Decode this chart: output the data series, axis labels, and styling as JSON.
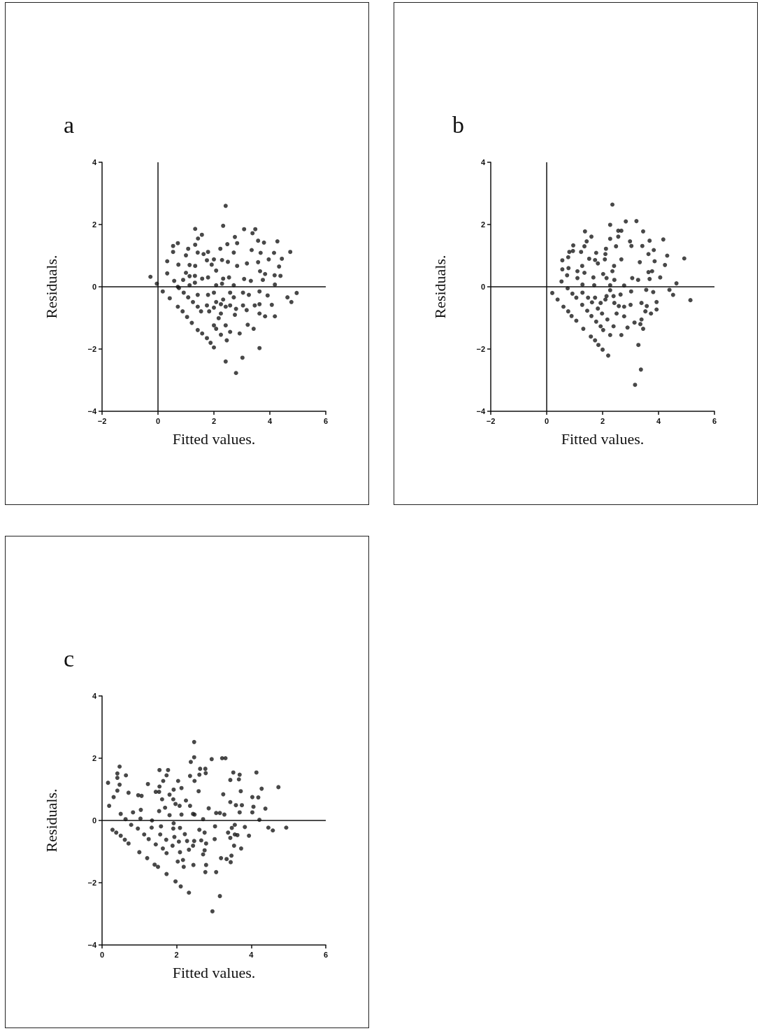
{
  "chart_data": [
    {
      "type": "scatter",
      "title": "a",
      "xlabel": "Fitted values.",
      "ylabel": "Residuals.",
      "xlim": [
        -2,
        6
      ],
      "ylim": [
        -4,
        4
      ],
      "xticks": [
        -2,
        0,
        2,
        4,
        6
      ],
      "yticks": [
        -4,
        -2,
        0,
        2,
        4
      ],
      "grid": false,
      "marker": "circle",
      "ref_lines": [
        {
          "axis": "x",
          "value": 0
        },
        {
          "axis": "y",
          "value": 0
        }
      ],
      "series": [
        {
          "color": "#1a1a1a",
          "x": [
            2.42,
            2.33,
            1.33,
            3.08,
            3.48,
            3.38,
            1.57,
            1.43,
            2.75,
            2.83,
            2.48,
            3.58,
            3.79,
            4.27,
            0.71,
            0.54,
            0.54,
            1.08,
            1.33,
            1.42,
            1.63,
            1.79,
            2.23,
            2.71,
            3.35,
            3.67,
            4.15,
            4.73,
            1.0,
            0.33,
            0.73,
            1.13,
            1.33,
            1.75,
            2.0,
            2.29,
            2.5,
            1.92,
            2.08,
            2.83,
            3.18,
            3.58,
            3.96,
            4.43,
            4.33,
            0.33,
            1.0,
            1.13,
            1.32,
            1.58,
            1.79,
            0.9,
            3.65,
            3.83,
            4.17,
            4.38,
            2.33,
            2.54,
            3.08,
            3.32,
            3.75,
            -0.27,
            -0.04,
            0.58,
            1.13,
            1.32,
            2.08,
            2.29,
            2.71,
            4.18,
            0.17,
            0.42,
            0.71,
            0.75,
            0.92,
            1.08,
            1.25,
            1.42,
            1.54,
            0.71,
            0.88,
            1.04,
            1.21,
            1.42,
            1.58,
            1.75,
            1.88,
            2.0,
            1.42,
            1.79,
            2.0,
            2.08,
            2.0,
            2.25,
            2.17,
            2.33,
            2.25,
            2.42,
            2.58,
            2.79,
            2.75,
            2.58,
            2.71,
            3.04,
            3.25,
            3.04,
            3.17,
            3.46,
            3.63,
            3.63,
            3.83,
            3.92,
            4.07,
            4.18,
            3.63,
            4.63,
            4.77,
            4.96,
            2.0,
            2.08,
            2.25,
            2.42,
            2.58,
            2.92,
            3.21,
            3.42,
            2.46,
            3.63,
            2.42,
            3.02,
            2.79,
            1.75,
            1.83
          ],
          "values": [
            2.6,
            1.96,
            1.86,
            1.85,
            1.85,
            1.72,
            1.67,
            1.55,
            1.6,
            1.4,
            1.37,
            1.48,
            1.42,
            1.46,
            1.4,
            1.31,
            1.12,
            1.22,
            1.35,
            1.1,
            1.05,
            1.12,
            1.22,
            1.1,
            1.18,
            1.09,
            1.09,
            1.12,
            1.01,
            0.82,
            0.71,
            0.7,
            0.67,
            0.85,
            0.88,
            0.86,
            0.8,
            0.71,
            0.52,
            0.67,
            0.75,
            0.79,
            0.88,
            0.9,
            0.65,
            0.43,
            0.45,
            0.34,
            0.35,
            0.26,
            0.3,
            0.22,
            0.5,
            0.41,
            0.37,
            0.35,
            0.26,
            0.3,
            0.25,
            0.19,
            0.22,
            0.32,
            0.1,
            0.19,
            0.05,
            0.13,
            0.05,
            0.1,
            0.05,
            0.07,
            -0.15,
            -0.37,
            0,
            -0.04,
            -0.19,
            -0.34,
            -0.49,
            -0.64,
            -0.79,
            -0.64,
            -0.79,
            -0.97,
            -1.16,
            -1.39,
            -1.5,
            -1.65,
            -1.8,
            -1.95,
            -0.26,
            -0.26,
            -0.19,
            -0.49,
            -0.67,
            -0.86,
            -1.01,
            -0.41,
            -0.56,
            -0.64,
            -0.6,
            -0.71,
            -0.9,
            -0.19,
            -0.34,
            -0.19,
            -0.26,
            -0.6,
            -0.75,
            -0.6,
            -0.56,
            -0.86,
            -0.95,
            -0.28,
            -0.58,
            -0.95,
            -0.15,
            -0.34,
            -0.49,
            -0.2,
            -1.24,
            -1.35,
            -1.54,
            -1.24,
            -1.45,
            -1.5,
            -1.22,
            -1.35,
            -1.72,
            -1.97,
            -2.4,
            -2.28,
            -2.77,
            -0.6,
            -0.79
          ]
        }
      ]
    },
    {
      "type": "scatter",
      "title": "b",
      "xlabel": "Fitted values.",
      "ylabel": "Residuals.",
      "xlim": [
        -2,
        6
      ],
      "ylim": [
        -4,
        4
      ],
      "xticks": [
        -2,
        0,
        2,
        4,
        6
      ],
      "yticks": [
        -4,
        -2,
        0,
        2,
        4
      ],
      "grid": false,
      "marker": "circle",
      "ref_lines": [
        {
          "axis": "x",
          "value": 0
        },
        {
          "axis": "y",
          "value": 0
        }
      ],
      "series": [
        {
          "color": "#1a1a1a",
          "x": [
            2.35,
            2.83,
            3.21,
            2.27,
            1.37,
            2.56,
            2.67,
            3.45,
            1.6,
            2.27,
            2.56,
            4.17,
            1.43,
            2.98,
            3.68,
            2.48,
            3.03,
            3.42,
            0.95,
            1.35,
            0.81,
            0.94,
            1.23,
            2.12,
            3.83,
            0.77,
            1.77,
            2.1,
            0.56,
            1.52,
            1.73,
            1.83,
            2.08,
            2.67,
            3.33,
            3.64,
            3.86,
            4.31,
            4.92,
            0.56,
            0.78,
            1.27,
            2.41,
            4.23,
            1.1,
            1.35,
            2.02,
            2.35,
            3.64,
            3.77,
            0.73,
            1.1,
            1.67,
            2.14,
            2.42,
            3.06,
            3.27,
            3.68,
            4.06,
            0.53,
            1.28,
            1.7,
            2.27,
            2.77,
            4.64,
            0.2,
            0.39,
            0.6,
            0.75,
            0.92,
            1.06,
            1.27,
            1.45,
            1.6,
            1.77,
            1.93,
            2.02,
            0.77,
            0.89,
            1.06,
            1.31,
            1.58,
            1.73,
            1.85,
            2.0,
            2.2,
            1.28,
            1.48,
            1.73,
            1.62,
            1.83,
            1.98,
            2.17,
            2.27,
            2.14,
            2.39,
            2.42,
            2.58,
            2.77,
            2.5,
            2.77,
            2.64,
            3.02,
            3.0,
            2.39,
            2.27,
            2.67,
            2.89,
            3.14,
            3.35,
            3.45,
            3.39,
            3.39,
            3.58,
            3.56,
            3.81,
            3.53,
            3.73,
            3.93,
            3.93,
            4.39,
            4.52,
            5.14,
            3.28,
            3.37,
            3.16,
            2.1,
            1.93
          ],
          "values": [
            2.64,
            2.1,
            2.11,
            1.99,
            1.78,
            1.8,
            1.8,
            1.78,
            1.61,
            1.54,
            1.61,
            1.52,
            1.46,
            1.46,
            1.48,
            1.3,
            1.31,
            1.31,
            1.33,
            1.3,
            1.12,
            1.15,
            1.12,
            1.22,
            1.18,
            0.95,
            1.09,
            1.05,
            0.85,
            0.9,
            0.86,
            0.75,
            0.88,
            0.88,
            0.79,
            1.05,
            0.82,
            1.0,
            0.91,
            0.56,
            0.6,
            0.67,
            0.67,
            0.7,
            0.5,
            0.45,
            0.41,
            0.5,
            0.47,
            0.5,
            0.37,
            0.28,
            0.3,
            0.28,
            0.22,
            0.28,
            0.22,
            0.25,
            0.3,
            0.17,
            0.07,
            0.05,
            0.05,
            0.04,
            0.11,
            -0.2,
            -0.41,
            -0.64,
            -0.05,
            -0.22,
            -0.35,
            -0.58,
            -0.77,
            -0.94,
            -1.12,
            -1.27,
            -1.39,
            -0.79,
            -0.94,
            -1.09,
            -1.35,
            -1.6,
            -1.72,
            -1.87,
            -2.02,
            -2.21,
            -0.19,
            -0.35,
            -0.35,
            -0.5,
            -0.7,
            -0.86,
            -1.05,
            -0.11,
            -0.3,
            -0.3,
            -0.52,
            -0.62,
            -0.64,
            -0.86,
            -0.95,
            -0.25,
            -0.15,
            -0.58,
            -1.27,
            -1.55,
            -1.55,
            -1.31,
            -1.15,
            -1.2,
            -1.35,
            -1.05,
            -0.52,
            -0.62,
            -0.1,
            -0.17,
            -0.79,
            -0.86,
            -0.73,
            -0.49,
            -0.1,
            -0.26,
            -0.43,
            -1.87,
            -2.66,
            -3.15,
            -0.41,
            -0.52
          ]
        }
      ]
    },
    {
      "type": "scatter",
      "title": "c",
      "xlabel": "Fitted values.",
      "ylabel": "Residuals.",
      "xlim": [
        0,
        6
      ],
      "ylim": [
        -4,
        4
      ],
      "xticks": [
        0,
        2,
        4,
        6
      ],
      "yticks": [
        -4,
        -2,
        0,
        2,
        4
      ],
      "grid": false,
      "marker": "circle",
      "ref_lines": [
        {
          "axis": "y",
          "value": 0
        }
      ],
      "series": [
        {
          "color": "#1a1a1a",
          "x": [
            2.47,
            2.47,
            2.38,
            2.94,
            3.22,
            3.31,
            0.47,
            0.41,
            0.41,
            0.64,
            0.16,
            0.47,
            0.19,
            0.31,
            0.41,
            0.71,
            0.97,
            1.06,
            0.5,
            0.83,
            1.04,
            1.23,
            1.54,
            1.77,
            1.73,
            1.64,
            1.54,
            1.44,
            1.53,
            2.04,
            1.92,
            2.13,
            1.61,
            1.81,
            1.91,
            1.97,
            2.08,
            2.25,
            2.36,
            1.53,
            1.69,
            1.81,
            2.13,
            2.48,
            2.36,
            2.61,
            2.78,
            2.63,
            2.77,
            2.48,
            2.59,
            2.86,
            3.06,
            3.16,
            3.28,
            3.25,
            3.44,
            3.52,
            3.69,
            3.67,
            3.72,
            3.44,
            3.59,
            3.75,
            3.69,
            4.14,
            4.28,
            4.73,
            4.03,
            4.19,
            4.06,
            4.03,
            4.38,
            4.22,
            2.71,
            2.44,
            1.34,
            1.03,
            0.63,
            0.28,
            0.38,
            0.5,
            0.61,
            0.71,
            1.0,
            1.21,
            1.41,
            1.5,
            1.73,
            1.97,
            2.11,
            2.33,
            0.78,
            0.96,
            1.13,
            1.25,
            1.44,
            1.63,
            1.73,
            1.33,
            1.56,
            1.72,
            1.89,
            2.09,
            2.17,
            2.03,
            2.19,
            1.58,
            1.92,
            1.91,
            2.09,
            2.22,
            1.94,
            2.06,
            2.28,
            2.47,
            2.44,
            2.33,
            2.61,
            2.75,
            2.66,
            2.79,
            2.75,
            2.71,
            2.45,
            2.79,
            2.77,
            3.06,
            3.16,
            2.96,
            3.03,
            3.02,
            3.19,
            3.34,
            3.47,
            3.45,
            3.38,
            3.44,
            3.56,
            3.63,
            3.54,
            3.73,
            3.48,
            3.56,
            3.83,
            3.94,
            4.46,
            4.58,
            4.94
          ],
          "values": [
            2.52,
            2.03,
            1.88,
            1.97,
            2.0,
            2.0,
            1.73,
            1.51,
            1.37,
            1.45,
            1.21,
            1.15,
            0.47,
            0.75,
            0.96,
            0.89,
            0.81,
            0.79,
            0.21,
            0.26,
            0.34,
            1.17,
            1.62,
            1.62,
            1.45,
            1.27,
            1.09,
            0.92,
            0.92,
            1.27,
            0.99,
            1.04,
            0.68,
            0.83,
            0.68,
            0.53,
            0.47,
            0.64,
            0.47,
            0.3,
            0.41,
            0.17,
            0.19,
            0.19,
            1.43,
            1.47,
            1.52,
            1.66,
            1.66,
            1.27,
            0.94,
            0.39,
            0.24,
            0.24,
            0.19,
            0.84,
            1.3,
            1.54,
            1.47,
            1.32,
            0.94,
            0.59,
            0.49,
            0.49,
            0.26,
            1.54,
            1.02,
            1.07,
            0.75,
            0.74,
            0.44,
            0.26,
            0.38,
            0.02,
            0.04,
            0.21,
            0,
            0.06,
            0.04,
            -0.3,
            -0.39,
            -0.49,
            -0.62,
            -0.74,
            -1.02,
            -1.21,
            -1.42,
            -1.49,
            -1.72,
            -1.96,
            -2.12,
            -2.32,
            -0.14,
            -0.26,
            -0.45,
            -0.6,
            -0.77,
            -0.9,
            -1.05,
            -0.23,
            -0.45,
            -0.62,
            -0.81,
            -1.02,
            -1.27,
            -1.32,
            -1.49,
            -0.19,
            -0.09,
            -0.26,
            -0.24,
            -0.44,
            -0.53,
            -0.68,
            -0.66,
            -0.66,
            -0.81,
            -0.94,
            -0.3,
            -0.39,
            -0.64,
            -0.74,
            -0.96,
            -1.09,
            -1.43,
            -1.43,
            -1.66,
            -1.66,
            -2.43,
            -2.92,
            -0.19,
            -0.6,
            -1.21,
            -1.24,
            -1.13,
            -1.34,
            -0.39,
            -0.56,
            -0.45,
            -0.47,
            -0.81,
            -0.9,
            -0.24,
            -0.14,
            -0.21,
            -0.49,
            -0.23,
            -0.32,
            -0.23
          ]
        }
      ]
    }
  ]
}
